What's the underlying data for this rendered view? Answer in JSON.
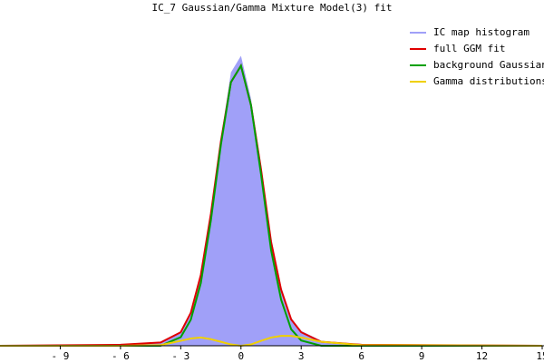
{
  "chart_data": {
    "type": "line",
    "title": "IC_7 Gaussian/Gamma Mixture Model(3) fit",
    "x": [
      -12,
      -6,
      -4,
      -3,
      -2.5,
      -2,
      -1.5,
      -1,
      -0.5,
      0,
      0.5,
      1,
      1.5,
      2,
      2.5,
      3,
      4,
      6,
      15
    ],
    "series": [
      {
        "name": "IC map histogram",
        "color": "#a0a0f8",
        "area": true,
        "values": [
          0,
          0.004,
          0.012,
          0.04,
          0.1,
          0.22,
          0.41,
          0.63,
          0.83,
          0.88,
          0.75,
          0.55,
          0.33,
          0.18,
          0.085,
          0.045,
          0.015,
          0.004,
          0
        ]
      },
      {
        "name": "full GGM fit",
        "color": "#e00000",
        "area": false,
        "values": [
          0,
          0.003,
          0.01,
          0.041,
          0.1,
          0.215,
          0.4,
          0.62,
          0.8,
          0.85,
          0.73,
          0.535,
          0.315,
          0.17,
          0.08,
          0.041,
          0.012,
          0.003,
          0
        ]
      },
      {
        "name": "background Gaussian",
        "color": "#00a000",
        "area": false,
        "values": [
          0,
          0,
          0,
          0.026,
          0.079,
          0.19,
          0.38,
          0.61,
          0.8,
          0.85,
          0.73,
          0.52,
          0.29,
          0.14,
          0.05,
          0.016,
          0,
          0,
          0
        ]
      },
      {
        "name": "Gamma distributions",
        "color": "#f0d000",
        "area": false,
        "values": [
          0,
          0,
          0.002,
          0.015,
          0.022,
          0.025,
          0.02,
          0.012,
          0.004,
          0,
          0.004,
          0.015,
          0.025,
          0.03,
          0.03,
          0.025,
          0.012,
          0.002,
          0
        ]
      }
    ],
    "xlim": [
      -12,
      15
    ],
    "ylim": [
      0,
      1
    ],
    "xticks": [
      {
        "value": -9,
        "label": "- 9"
      },
      {
        "value": -6,
        "label": "- 6"
      },
      {
        "value": -3,
        "label": "- 3"
      },
      0,
      3,
      6,
      9,
      12,
      15
    ],
    "legend": "upper right"
  }
}
